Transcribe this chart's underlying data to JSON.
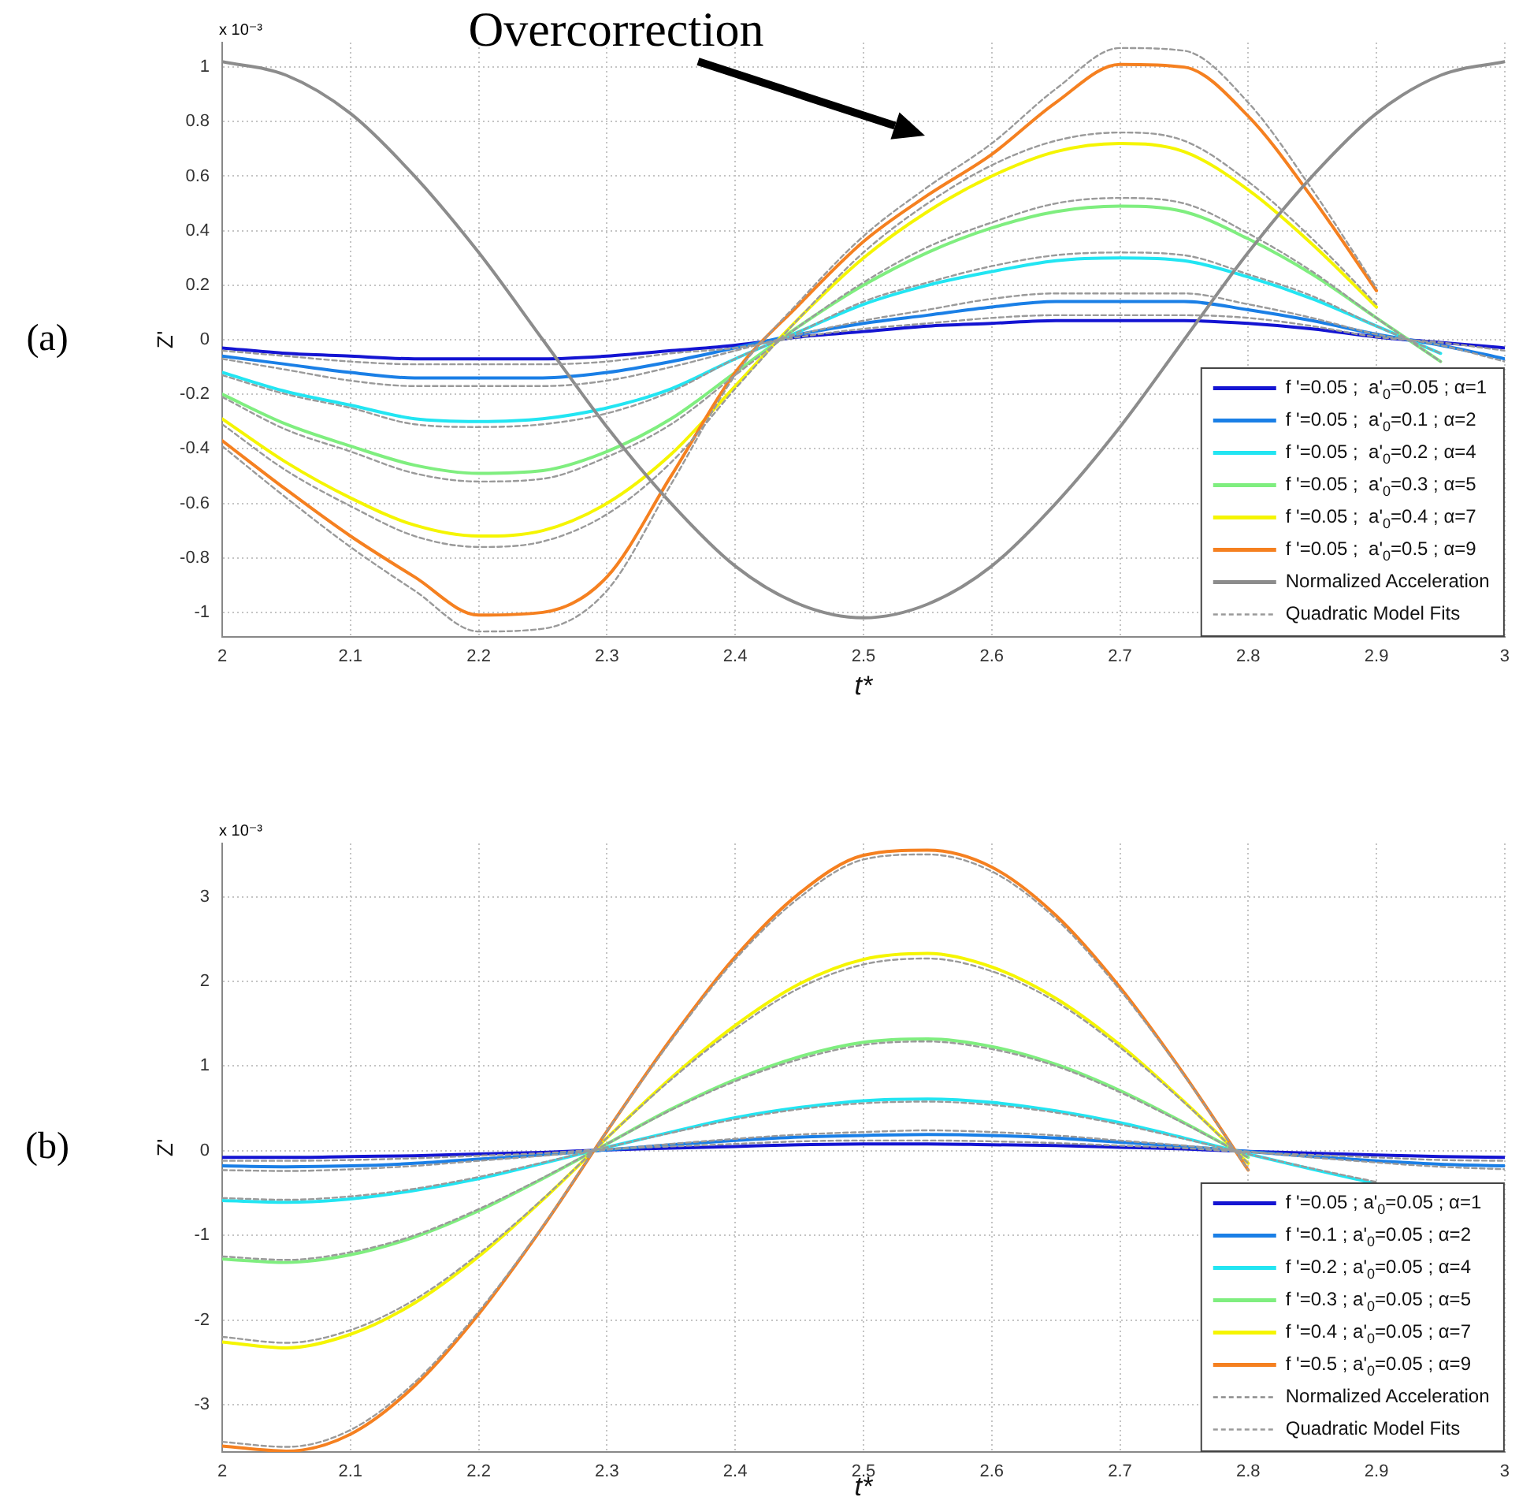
{
  "chart_data": [
    {
      "type": "line",
      "xlabel": "t*",
      "ylabel": "Z'",
      "xlim": [
        2,
        3
      ],
      "xticks": [
        2,
        2.1,
        2.2,
        2.3,
        2.4,
        2.5,
        2.6,
        2.7,
        2.8,
        2.9,
        3
      ],
      "ylim": [
        -1.09,
        1.09
      ],
      "yticks": [
        -1,
        -0.8,
        -0.6,
        -0.4,
        -0.2,
        0,
        0.2,
        0.4,
        0.6,
        0.8,
        1
      ],
      "grid": true,
      "legend": "bottom right",
      "marker": "none",
      "annotations": [
        "(a)",
        "x 10⁻³",
        "Overcorrection"
      ],
      "x": [
        2,
        2.05,
        2.1,
        2.15,
        2.2,
        2.25,
        2.3,
        2.35,
        2.4,
        2.45,
        2.5,
        2.55,
        2.6,
        2.65,
        2.7,
        2.75,
        2.8,
        2.85,
        2.9,
        2.95,
        3
      ],
      "series": [
        {
          "name": "f '=0.05 ;  a'$_{0}$=0.05 ; α=1",
          "color": "#1414d2",
          "values": [
            -0.03,
            -0.05,
            -0.06,
            -0.07,
            -0.07,
            -0.07,
            -0.06,
            -0.04,
            -0.02,
            0.01,
            0.03,
            0.05,
            0.06,
            0.07,
            0.07,
            0.07,
            0.06,
            0.04,
            0.01,
            -0.01,
            -0.03
          ]
        },
        {
          "name": "f '=0.05 ;  a'$_{0}$=0.1 ; α=2",
          "color": "#1a7fe6",
          "values": [
            -0.06,
            -0.09,
            -0.12,
            -0.14,
            -0.14,
            -0.14,
            -0.12,
            -0.08,
            -0.03,
            0.02,
            0.06,
            0.09,
            0.12,
            0.14,
            0.14,
            0.14,
            0.11,
            0.07,
            0.02,
            -0.02,
            -0.07
          ]
        },
        {
          "name": "f '=0.05 ;  a'$_{0}$=0.2 ; α=4",
          "color": "#22e5f2",
          "values": [
            -0.12,
            -0.19,
            -0.24,
            -0.29,
            -0.3,
            -0.29,
            -0.25,
            -0.18,
            -0.07,
            0.03,
            0.13,
            0.2,
            0.25,
            0.29,
            0.3,
            0.29,
            0.23,
            0.15,
            0.05,
            -0.05,
            null
          ]
        },
        {
          "name": "f '=0.05 ;  a'$_{0}$=0.3 ; α=5",
          "color": "#7fee7f",
          "values": [
            -0.2,
            -0.31,
            -0.39,
            -0.46,
            -0.49,
            -0.48,
            -0.41,
            -0.29,
            -0.12,
            0.05,
            0.2,
            0.32,
            0.41,
            0.47,
            0.49,
            0.47,
            0.37,
            0.24,
            0.08,
            -0.08,
            null
          ]
        },
        {
          "name": "f '=0.05 ;  a'$_{0}$=0.4 ; α=7",
          "color": "#f5f500",
          "values": [
            -0.29,
            -0.45,
            -0.58,
            -0.68,
            -0.72,
            -0.7,
            -0.6,
            -0.42,
            -0.17,
            0.08,
            0.3,
            0.47,
            0.6,
            0.69,
            0.72,
            0.69,
            0.55,
            0.35,
            0.12,
            null,
            null
          ]
        },
        {
          "name": "f '=0.05 ;  a'$_{0}$=0.5 ; α=9",
          "color": "#f58020",
          "values": [
            -0.37,
            -0.55,
            -0.72,
            -0.87,
            -1.01,
            -1,
            -0.87,
            -0.5,
            -0.12,
            0.13,
            0.36,
            0.53,
            0.68,
            0.87,
            1.01,
            1,
            0.82,
            0.52,
            0.18,
            null,
            null
          ]
        },
        {
          "name": "Normalized Acceleration",
          "color": "#8c8c8c",
          "values": [
            1.02,
            0.97,
            0.83,
            0.6,
            0.32,
            0,
            -0.32,
            -0.6,
            -0.83,
            -0.97,
            -1.02,
            -0.97,
            -0.83,
            -0.6,
            -0.32,
            0,
            0.32,
            0.6,
            0.83,
            0.97,
            1.02
          ]
        },
        {
          "name": "Quadratic Model Fits",
          "color": "#9a9a9a",
          "line_style": "dashed",
          "values": [
            -0.39,
            -0.58,
            -0.76,
            -0.92,
            -1.07,
            -1.06,
            -0.92,
            -0.53,
            -0.13,
            0.14,
            0.38,
            0.56,
            0.72,
            0.92,
            1.07,
            1.06,
            0.87,
            0.55,
            0.19,
            null,
            null
          ]
        },
        {
          "color": "#9a9a9a",
          "line_style": "dashed",
          "values": [
            -0.31,
            -0.48,
            -0.61,
            -0.72,
            -0.76,
            -0.74,
            -0.64,
            -0.45,
            -0.18,
            0.08,
            0.32,
            0.5,
            0.64,
            0.73,
            0.76,
            0.73,
            0.58,
            0.37,
            0.13,
            null,
            null
          ]
        },
        {
          "color": "#9a9a9a",
          "line_style": "dashed",
          "values": [
            -0.21,
            -0.33,
            -0.41,
            -0.49,
            -0.52,
            -0.51,
            -0.43,
            -0.31,
            -0.13,
            0.05,
            0.21,
            0.34,
            0.43,
            0.5,
            0.52,
            0.5,
            0.39,
            0.25,
            0.08,
            -0.08,
            null
          ]
        },
        {
          "color": "#9a9a9a",
          "line_style": "dashed",
          "values": [
            -0.13,
            -0.2,
            -0.25,
            -0.31,
            -0.32,
            -0.31,
            -0.27,
            -0.19,
            -0.07,
            0.03,
            0.14,
            0.21,
            0.27,
            0.31,
            0.32,
            0.31,
            0.24,
            0.16,
            0.05,
            -0.05,
            null
          ]
        },
        {
          "color": "#9a9a9a",
          "line_style": "dashed",
          "values": [
            -0.07,
            -0.11,
            -0.15,
            -0.17,
            -0.17,
            -0.17,
            -0.15,
            -0.1,
            -0.04,
            0.02,
            0.07,
            0.11,
            0.15,
            0.17,
            0.17,
            0.17,
            0.13,
            0.08,
            0.02,
            -0.02,
            -0.08
          ]
        },
        {
          "color": "#9a9a9a",
          "line_style": "dashed",
          "values": [
            -0.04,
            -0.06,
            -0.08,
            -0.09,
            -0.09,
            -0.09,
            -0.08,
            -0.05,
            -0.03,
            0.01,
            0.04,
            0.06,
            0.08,
            0.09,
            0.09,
            0.09,
            0.08,
            0.05,
            0.01,
            -0.01,
            -0.04
          ]
        }
      ]
    },
    {
      "type": "line",
      "xlabel": "t*",
      "ylabel": "Z'",
      "xlim": [
        2,
        3
      ],
      "xticks": [
        2,
        2.1,
        2.2,
        2.3,
        2.4,
        2.5,
        2.6,
        2.7,
        2.8,
        2.9,
        3
      ],
      "ylim": [
        -3.56,
        3.63
      ],
      "yticks": [
        -3,
        -2,
        -1,
        0,
        1,
        2,
        3
      ],
      "grid": true,
      "legend": "bottom right",
      "marker": "none",
      "annotations": [
        "(b)",
        "x 10⁻³"
      ],
      "x": [
        2,
        2.05,
        2.1,
        2.15,
        2.2,
        2.25,
        2.3,
        2.35,
        2.4,
        2.45,
        2.5,
        2.55,
        2.6,
        2.65,
        2.7,
        2.75,
        2.8,
        2.85,
        2.9,
        2.95,
        3
      ],
      "series": [
        {
          "name": "f '=0.05 ; a'$_{0}$=0.05 ; α=1",
          "color": "#1414d2",
          "values": [
            -0.08,
            -0.08,
            -0.07,
            -0.06,
            -0.04,
            -0.02,
            0.01,
            0.03,
            0.05,
            0.07,
            0.08,
            0.08,
            0.07,
            0.06,
            0.04,
            0.02,
            -0.01,
            -0.03,
            -0.05,
            -0.07,
            -0.08
          ]
        },
        {
          "name": "f '=0.1 ; a'$_{0}$=0.05 ; α=2",
          "color": "#1a7fe6",
          "values": [
            -0.18,
            -0.19,
            -0.18,
            -0.15,
            -0.1,
            -0.05,
            0.01,
            0.07,
            0.12,
            0.16,
            0.18,
            0.19,
            0.18,
            0.15,
            0.1,
            0.05,
            -0.01,
            -0.07,
            -0.12,
            -0.16,
            -0.18
          ]
        },
        {
          "name": "f '=0.2 ; a'$_{0}$=0.05 ; α=4",
          "color": "#22e5f2",
          "values": [
            -0.59,
            -0.61,
            -0.57,
            -0.47,
            -0.33,
            -0.15,
            0.04,
            0.22,
            0.39,
            0.51,
            0.59,
            0.61,
            0.57,
            0.47,
            0.33,
            0.15,
            -0.04,
            -0.22,
            -0.39,
            null,
            null
          ]
        },
        {
          "name": "f '=0.3 ; a'$_{0}$=0.05 ; α=5",
          "color": "#7fee7f",
          "values": [
            -1.28,
            -1.32,
            -1.23,
            -1.02,
            -0.71,
            -0.33,
            0.08,
            0.49,
            0.84,
            1.11,
            1.28,
            1.32,
            1.23,
            1.02,
            0.71,
            0.33,
            -0.08,
            null,
            null,
            null,
            null
          ]
        },
        {
          "name": "f '=0.4 ; a'$_{0}$=0.05 ; α=7",
          "color": "#f5f500",
          "values": [
            -2.26,
            -2.33,
            -2.17,
            -1.8,
            -1.25,
            -0.58,
            0.15,
            0.86,
            1.48,
            1.97,
            2.26,
            2.33,
            2.17,
            1.8,
            1.25,
            0.58,
            -0.15,
            null,
            null,
            null,
            null
          ]
        },
        {
          "name": "f '=0.5 ; a'$_{0}$=0.05 ; α=9",
          "color": "#f58020",
          "values": [
            -3.49,
            -3.55,
            -3.35,
            -2.78,
            -1.93,
            -0.9,
            0.23,
            1.32,
            2.29,
            3.04,
            3.49,
            3.55,
            3.35,
            2.78,
            1.93,
            0.9,
            -0.23,
            null,
            null,
            null,
            null
          ]
        },
        {
          "name": "Normalized Acceleration",
          "color": "#8c8c8c",
          "line_style": "dashed",
          "values": [
            null,
            null,
            null,
            null,
            null,
            null,
            null,
            null,
            null,
            null,
            null,
            null,
            null,
            null,
            null,
            null,
            null,
            null,
            null,
            null,
            null
          ]
        },
        {
          "name": "Quadratic Model Fits",
          "color": "#9a9a9a",
          "line_style": "dashed",
          "values": [
            -3.44,
            -3.5,
            -3.3,
            -2.74,
            -1.9,
            -0.89,
            0.23,
            1.3,
            2.26,
            2.99,
            3.44,
            3.5,
            3.3,
            2.74,
            1.9,
            0.89,
            -0.23,
            null,
            null,
            null,
            null
          ]
        },
        {
          "color": "#9a9a9a",
          "line_style": "dashed",
          "values": [
            -2.2,
            -2.27,
            -2.12,
            -1.76,
            -1.22,
            -0.57,
            0.15,
            0.84,
            1.44,
            1.92,
            2.2,
            2.27,
            2.12,
            1.76,
            1.22,
            0.57,
            -0.15,
            null,
            null,
            null,
            null
          ]
        },
        {
          "color": "#9a9a9a",
          "line_style": "dashed",
          "values": [
            -1.25,
            -1.29,
            -1.2,
            -1,
            -0.69,
            -0.32,
            0.08,
            0.48,
            0.82,
            1.08,
            1.25,
            1.29,
            1.2,
            1,
            0.69,
            0.32,
            -0.08,
            null,
            null,
            null,
            null
          ]
        },
        {
          "color": "#9a9a9a",
          "line_style": "dashed",
          "values": [
            -0.56,
            -0.58,
            -0.54,
            -0.45,
            -0.31,
            -0.14,
            0.04,
            0.21,
            0.37,
            0.49,
            0.56,
            0.58,
            0.54,
            0.45,
            0.31,
            0.14,
            -0.04,
            -0.21,
            -0.37,
            null,
            null
          ]
        },
        {
          "color": "#9a9a9a",
          "line_style": "dashed",
          "values": [
            -0.23,
            -0.24,
            -0.22,
            -0.18,
            -0.12,
            -0.06,
            0.01,
            0.08,
            0.14,
            0.19,
            0.22,
            0.24,
            0.22,
            0.18,
            0.12,
            0.06,
            -0.01,
            -0.08,
            -0.14,
            -0.19,
            -0.22
          ]
        },
        {
          "color": "#9a9a9a",
          "line_style": "dashed",
          "values": [
            -0.12,
            -0.12,
            -0.11,
            -0.09,
            -0.06,
            -0.03,
            0.02,
            0.05,
            0.08,
            0.11,
            0.12,
            0.12,
            0.11,
            0.09,
            0.06,
            0.03,
            -0.02,
            -0.05,
            -0.08,
            -0.11,
            -0.12
          ]
        }
      ]
    }
  ]
}
